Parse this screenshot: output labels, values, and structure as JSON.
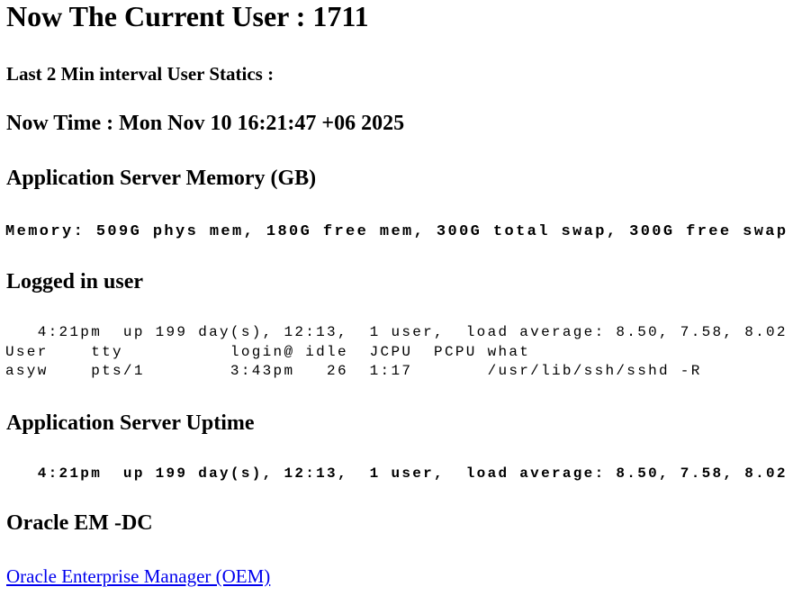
{
  "title": "Now The Current User : 1711",
  "interval_label": "Last 2 Min interval User Statics :",
  "now_time": "Now Time : Mon Nov 10 16:21:47 +06 2025",
  "memory": {
    "heading": "Application Server Memory (GB)",
    "text": "Memory: 509G phys mem, 180G free mem, 300G total swap, 300G free swap"
  },
  "logged_in": {
    "heading": "Logged in user",
    "output": "   4:21pm  up 199 day(s), 12:13,  1 user,  load average: 8.50, 7.58, 8.02\nUser    tty          login@ idle  JCPU  PCPU what\nasyw    pts/1        3:43pm   26  1:17       /usr/lib/ssh/sshd -R"
  },
  "uptime": {
    "heading": "Application Server Uptime",
    "text": "   4:21pm  up 199 day(s), 12:13,  1 user,  load average: 8.50, 7.58, 8.02"
  },
  "oem": {
    "heading": "Oracle EM -DC",
    "link": "Oracle Enterprise Manager (OEM)",
    "link_color": "#0000ee"
  }
}
